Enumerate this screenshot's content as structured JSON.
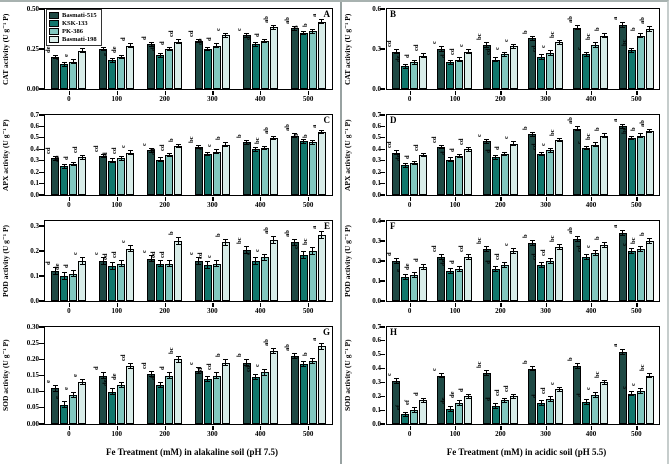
{
  "figure": {
    "legend_items": [
      {
        "label": "Basmati-515",
        "color": "#1e4944"
      },
      {
        "label": "KSK-133",
        "color": "#11776d"
      },
      {
        "label": "PK-386",
        "color": "#82c7bf"
      },
      {
        "label": "Basmati-198",
        "color": "#d8ece8"
      }
    ],
    "axis_color": "#000000",
    "divider_color": "#98a2a1"
  },
  "chart_data": [
    {
      "id": "A",
      "type": "bar",
      "column": "left",
      "letter_pos": "right",
      "show_legend": true,
      "ylabel": "CAT activity (U g⁻¹ P)",
      "xlabel": "",
      "ylim": [
        0,
        0.5
      ],
      "yticks": [
        0,
        0.25,
        0.5
      ],
      "ytick_labels": [
        "0.00",
        "0.25",
        "0.50"
      ],
      "categories": [
        "0",
        "100",
        "200",
        "300",
        "400",
        "500"
      ],
      "error_bar": 0.015,
      "series": [
        {
          "name": "Basmati-515",
          "values": [
            0.2,
            0.25,
            0.28,
            0.3,
            0.335,
            0.38
          ],
          "letters": [
            "de",
            "d",
            "d",
            "cd",
            "c",
            "ab"
          ]
        },
        {
          "name": "KSK-133",
          "values": [
            0.155,
            0.18,
            0.21,
            0.25,
            0.28,
            0.35
          ],
          "letters": [
            "e",
            "e",
            "de",
            "de",
            "d",
            "b"
          ]
        },
        {
          "name": "PK-386",
          "values": [
            0.17,
            0.2,
            0.25,
            0.27,
            0.3,
            0.36
          ],
          "letters": [
            "e",
            "de",
            "d",
            "d",
            "d",
            "b"
          ]
        },
        {
          "name": "Basmati-198",
          "values": [
            0.24,
            0.27,
            0.295,
            0.335,
            0.385,
            0.42
          ],
          "letters": [
            "d",
            "d",
            "cd",
            "c",
            "ab",
            "a"
          ]
        }
      ]
    },
    {
      "id": "B",
      "type": "bar",
      "column": "right",
      "letter_pos": "left",
      "show_legend": false,
      "ylabel": "CAT activity (U g⁻¹ P)",
      "xlabel": "",
      "ylim": [
        0,
        0.6
      ],
      "yticks": [
        0,
        0.3,
        0.6
      ],
      "ytick_labels": [
        "0.0",
        "0.3",
        "0.6"
      ],
      "categories": [
        "0",
        "100",
        "200",
        "300",
        "400",
        "500"
      ],
      "error_bar": 0.02,
      "series": [
        {
          "name": "Basmati-515",
          "values": [
            0.28,
            0.3,
            0.33,
            0.38,
            0.46,
            0.48
          ],
          "letters": [
            "cd",
            "c",
            "bc",
            "b",
            "ab",
            "a"
          ]
        },
        {
          "name": "KSK-133",
          "values": [
            0.17,
            0.2,
            0.22,
            0.24,
            0.26,
            0.29
          ],
          "letters": [
            "de",
            "d",
            "cd",
            "cd",
            "c",
            "bc"
          ]
        },
        {
          "name": "PK-386",
          "values": [
            0.2,
            0.22,
            0.26,
            0.27,
            0.33,
            0.4
          ],
          "letters": [
            "d",
            "cd",
            "c",
            "c",
            "bc",
            "b"
          ]
        },
        {
          "name": "Basmati-198",
          "values": [
            0.25,
            0.28,
            0.32,
            0.35,
            0.4,
            0.45
          ],
          "letters": [
            "cd",
            "c",
            "c",
            "bc",
            "b",
            "ab"
          ]
        }
      ]
    },
    {
      "id": "C",
      "type": "bar",
      "column": "left",
      "letter_pos": "right",
      "show_legend": false,
      "ylabel": "APX activity (U g⁻¹ P)",
      "xlabel": "",
      "ylim": [
        0,
        0.7
      ],
      "yticks": [
        0,
        0.1,
        0.2,
        0.3,
        0.4,
        0.5,
        0.6,
        0.7
      ],
      "ytick_labels": [
        "0.0",
        "0.1",
        "0.2",
        "0.3",
        "0.4",
        "0.5",
        "0.6",
        "0.7"
      ],
      "categories": [
        "0",
        "100",
        "200",
        "300",
        "400",
        "500"
      ],
      "error_bar": 0.02,
      "series": [
        {
          "name": "Basmati-515",
          "values": [
            0.32,
            0.34,
            0.39,
            0.42,
            0.46,
            0.52
          ],
          "letters": [
            "cd",
            "cd",
            "c",
            "bc",
            "b",
            "ab"
          ]
        },
        {
          "name": "KSK-133",
          "values": [
            0.25,
            0.3,
            0.31,
            0.36,
            0.4,
            0.47
          ],
          "letters": [
            "de",
            "d",
            "cd",
            "c",
            "c",
            "b"
          ]
        },
        {
          "name": "PK-386",
          "values": [
            0.27,
            0.32,
            0.35,
            0.38,
            0.41,
            0.46
          ],
          "letters": [
            "d",
            "cd",
            "cd",
            "c",
            "bc",
            "b"
          ]
        },
        {
          "name": "Basmati-198",
          "values": [
            0.33,
            0.37,
            0.43,
            0.44,
            0.5,
            0.55
          ],
          "letters": [
            "cd",
            "c",
            "b",
            "b",
            "ab",
            "a"
          ]
        }
      ]
    },
    {
      "id": "D",
      "type": "bar",
      "column": "right",
      "letter_pos": "left",
      "show_legend": false,
      "ylabel": "APX activity (U g⁻¹ P)",
      "xlabel": "",
      "ylim": [
        0,
        0.7
      ],
      "yticks": [
        0,
        0.1,
        0.2,
        0.3,
        0.4,
        0.5,
        0.6,
        0.7
      ],
      "ytick_labels": [
        "0.0",
        "0.1",
        "0.2",
        "0.3",
        "0.4",
        "0.5",
        "0.6",
        "0.7"
      ],
      "categories": [
        "0",
        "100",
        "200",
        "300",
        "400",
        "500"
      ],
      "error_bar": 0.02,
      "series": [
        {
          "name": "Basmati-515",
          "values": [
            0.37,
            0.42,
            0.47,
            0.53,
            0.58,
            0.6
          ],
          "letters": [
            "cd",
            "cd",
            "c",
            "b",
            "ab",
            "a"
          ]
        },
        {
          "name": "KSK-133",
          "values": [
            0.26,
            0.31,
            0.33,
            0.36,
            0.41,
            0.5
          ],
          "letters": [
            "de",
            "d",
            "d",
            "cd",
            "c",
            "bc"
          ]
        },
        {
          "name": "PK-386",
          "values": [
            0.28,
            0.34,
            0.36,
            0.39,
            0.44,
            0.52
          ],
          "letters": [
            "d",
            "d",
            "d",
            "c",
            "bc",
            "b"
          ]
        },
        {
          "name": "Basmati-198",
          "values": [
            0.35,
            0.4,
            0.45,
            0.48,
            0.52,
            0.56
          ],
          "letters": [
            "cd",
            "cd",
            "c",
            "bc",
            "b",
            "ab"
          ]
        }
      ]
    },
    {
      "id": "E",
      "type": "bar",
      "column": "left",
      "letter_pos": "right",
      "show_legend": false,
      "ylabel": "POD activity (U g⁻¹ P)",
      "xlabel": "",
      "ylim": [
        0,
        0.32
      ],
      "yticks": [
        0,
        0.1,
        0.2,
        0.3
      ],
      "ytick_labels": [
        "0.0",
        "0.1",
        "0.2",
        "0.3"
      ],
      "categories": [
        "0",
        "100",
        "200",
        "300",
        "400",
        "500"
      ],
      "error_bar": 0.015,
      "series": [
        {
          "name": "Basmati-515",
          "values": [
            0.12,
            0.16,
            0.17,
            0.16,
            0.205,
            0.235
          ],
          "letters": [
            "d",
            "c",
            "c",
            "c",
            "bc",
            "ab"
          ]
        },
        {
          "name": "KSK-133",
          "values": [
            0.1,
            0.14,
            0.15,
            0.145,
            0.16,
            0.185
          ],
          "letters": [
            "de",
            "cd",
            "cd",
            "cd",
            "c",
            "c"
          ]
        },
        {
          "name": "PK-386",
          "values": [
            0.11,
            0.15,
            0.15,
            0.15,
            0.175,
            0.2
          ],
          "letters": [
            "d",
            "cd",
            "cd",
            "c",
            "c",
            "bc"
          ]
        },
        {
          "name": "Basmati-198",
          "values": [
            0.16,
            0.21,
            0.24,
            0.235,
            0.245,
            0.265
          ],
          "letters": [
            "c",
            "c",
            "b",
            "b",
            "ab",
            "a"
          ]
        }
      ]
    },
    {
      "id": "F",
      "type": "bar",
      "column": "right",
      "letter_pos": "left",
      "show_legend": false,
      "ylabel": "POD activity (U g⁻¹ P)",
      "xlabel": "",
      "ylim": [
        0,
        0.4
      ],
      "yticks": [
        0,
        0.1,
        0.2,
        0.3,
        0.4
      ],
      "ytick_labels": [
        "0.0",
        "0.1",
        "0.2",
        "0.3",
        "0.4"
      ],
      "categories": [
        "0",
        "100",
        "200",
        "300",
        "400",
        "500"
      ],
      "error_bar": 0.015,
      "series": [
        {
          "name": "Basmati-515",
          "values": [
            0.2,
            0.22,
            0.26,
            0.29,
            0.31,
            0.34
          ],
          "letters": [
            "d",
            "cd",
            "bc",
            "b",
            "ab",
            "a"
          ]
        },
        {
          "name": "KSK-133",
          "values": [
            0.12,
            0.15,
            0.16,
            0.18,
            0.22,
            0.25
          ],
          "letters": [
            "e",
            "de",
            "d",
            "cd",
            "cd",
            "c"
          ]
        },
        {
          "name": "PK-386",
          "values": [
            0.13,
            0.16,
            0.18,
            0.2,
            0.24,
            0.26
          ],
          "letters": [
            "de",
            "d",
            "cd",
            "cd",
            "c",
            "bc"
          ]
        },
        {
          "name": "Basmati-198",
          "values": [
            0.17,
            0.22,
            0.25,
            0.27,
            0.28,
            0.3
          ],
          "letters": [
            "d",
            "cd",
            "c",
            "bc",
            "b",
            "b"
          ]
        }
      ]
    },
    {
      "id": "G",
      "type": "bar",
      "column": "left",
      "letter_pos": "right",
      "show_legend": false,
      "ylabel": "SOD activity (U g⁻¹ P)",
      "xlabel": "Fe Treatment (mM) in alakaline soil (pH 7.5)",
      "ylim": [
        0,
        0.3
      ],
      "yticks": [
        0,
        0.05,
        0.1,
        0.15,
        0.2,
        0.25,
        0.3
      ],
      "ytick_labels": [
        "0.00",
        "0.05",
        "0.10",
        "0.15",
        "0.20",
        "0.25",
        "0.30"
      ],
      "categories": [
        "0",
        "100",
        "200",
        "300",
        "400",
        "500"
      ],
      "error_bar": 0.01,
      "series": [
        {
          "name": "Basmati-515",
          "values": [
            0.11,
            0.15,
            0.155,
            0.165,
            0.19,
            0.21
          ],
          "letters": [
            "e",
            "d",
            "cd",
            "c",
            "b",
            "ab"
          ]
        },
        {
          "name": "KSK-133",
          "values": [
            0.06,
            0.1,
            0.12,
            0.14,
            0.145,
            0.185
          ],
          "letters": [
            "e",
            "de",
            "d",
            "cd",
            "cd",
            "c"
          ]
        },
        {
          "name": "PK-386",
          "values": [
            0.09,
            0.12,
            0.15,
            0.15,
            0.16,
            0.195
          ],
          "letters": [
            "e",
            "de",
            "d",
            "cd",
            "c",
            "b"
          ]
        },
        {
          "name": "Basmati-198",
          "values": [
            0.13,
            0.18,
            0.2,
            0.19,
            0.225,
            0.24
          ],
          "letters": [
            "e",
            "cd",
            "bc",
            "b",
            "ab",
            "a"
          ]
        }
      ]
    },
    {
      "id": "H",
      "type": "bar",
      "column": "right",
      "letter_pos": "left",
      "show_legend": false,
      "ylabel": "SOD activity (U g⁻¹ P)",
      "xlabel": "Fe Treatment (mM) in acidic soil (pH 5.5)",
      "ylim": [
        0,
        0.7
      ],
      "yticks": [
        0,
        0.1,
        0.2,
        0.3,
        0.4,
        0.5,
        0.6,
        0.7
      ],
      "ytick_labels": [
        "0.0",
        "0.1",
        "0.2",
        "0.3",
        "0.4",
        "0.5",
        "0.6",
        "0.7"
      ],
      "categories": [
        "0",
        "100",
        "200",
        "300",
        "400",
        "500"
      ],
      "error_bar": 0.02,
      "series": [
        {
          "name": "Basmati-515",
          "values": [
            0.31,
            0.35,
            0.37,
            0.4,
            0.42,
            0.52
          ],
          "letters": [
            "c",
            "c",
            "bc",
            "b",
            "b",
            "a"
          ]
        },
        {
          "name": "KSK-133",
          "values": [
            0.07,
            0.11,
            0.13,
            0.15,
            0.16,
            0.22
          ],
          "letters": [
            "ef",
            "de",
            "d",
            "d",
            "d",
            "c"
          ]
        },
        {
          "name": "PK-386",
          "values": [
            0.1,
            0.15,
            0.17,
            0.18,
            0.21,
            0.24
          ],
          "letters": [
            "ef",
            "de",
            "cd",
            "cd",
            "c",
            "c"
          ]
        },
        {
          "name": "Basmati-198",
          "values": [
            0.17,
            0.2,
            0.2,
            0.25,
            0.3,
            0.35
          ],
          "letters": [
            "d",
            "d",
            "cd",
            "c",
            "bc",
            "bc"
          ]
        }
      ]
    }
  ]
}
